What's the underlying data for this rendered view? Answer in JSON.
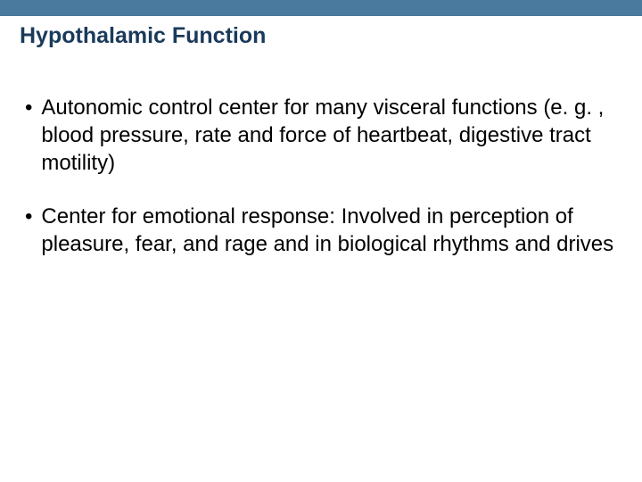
{
  "header": {
    "bar_color": "#4a7a9e"
  },
  "title": {
    "text": "Hypothalamic Function",
    "color": "#1a3a5a",
    "fontsize": 25
  },
  "bullets": [
    {
      "marker": "•",
      "text": "Autonomic control center for many visceral functions (e. g. , blood pressure, rate and force of heartbeat, digestive tract motility)"
    },
    {
      "marker": "•",
      "text": "Center for emotional response:  Involved in perception of pleasure, fear, and rage and in biological rhythms and drives"
    }
  ],
  "body": {
    "text_color": "#000000",
    "fontsize": 24,
    "background_color": "#ffffff"
  }
}
